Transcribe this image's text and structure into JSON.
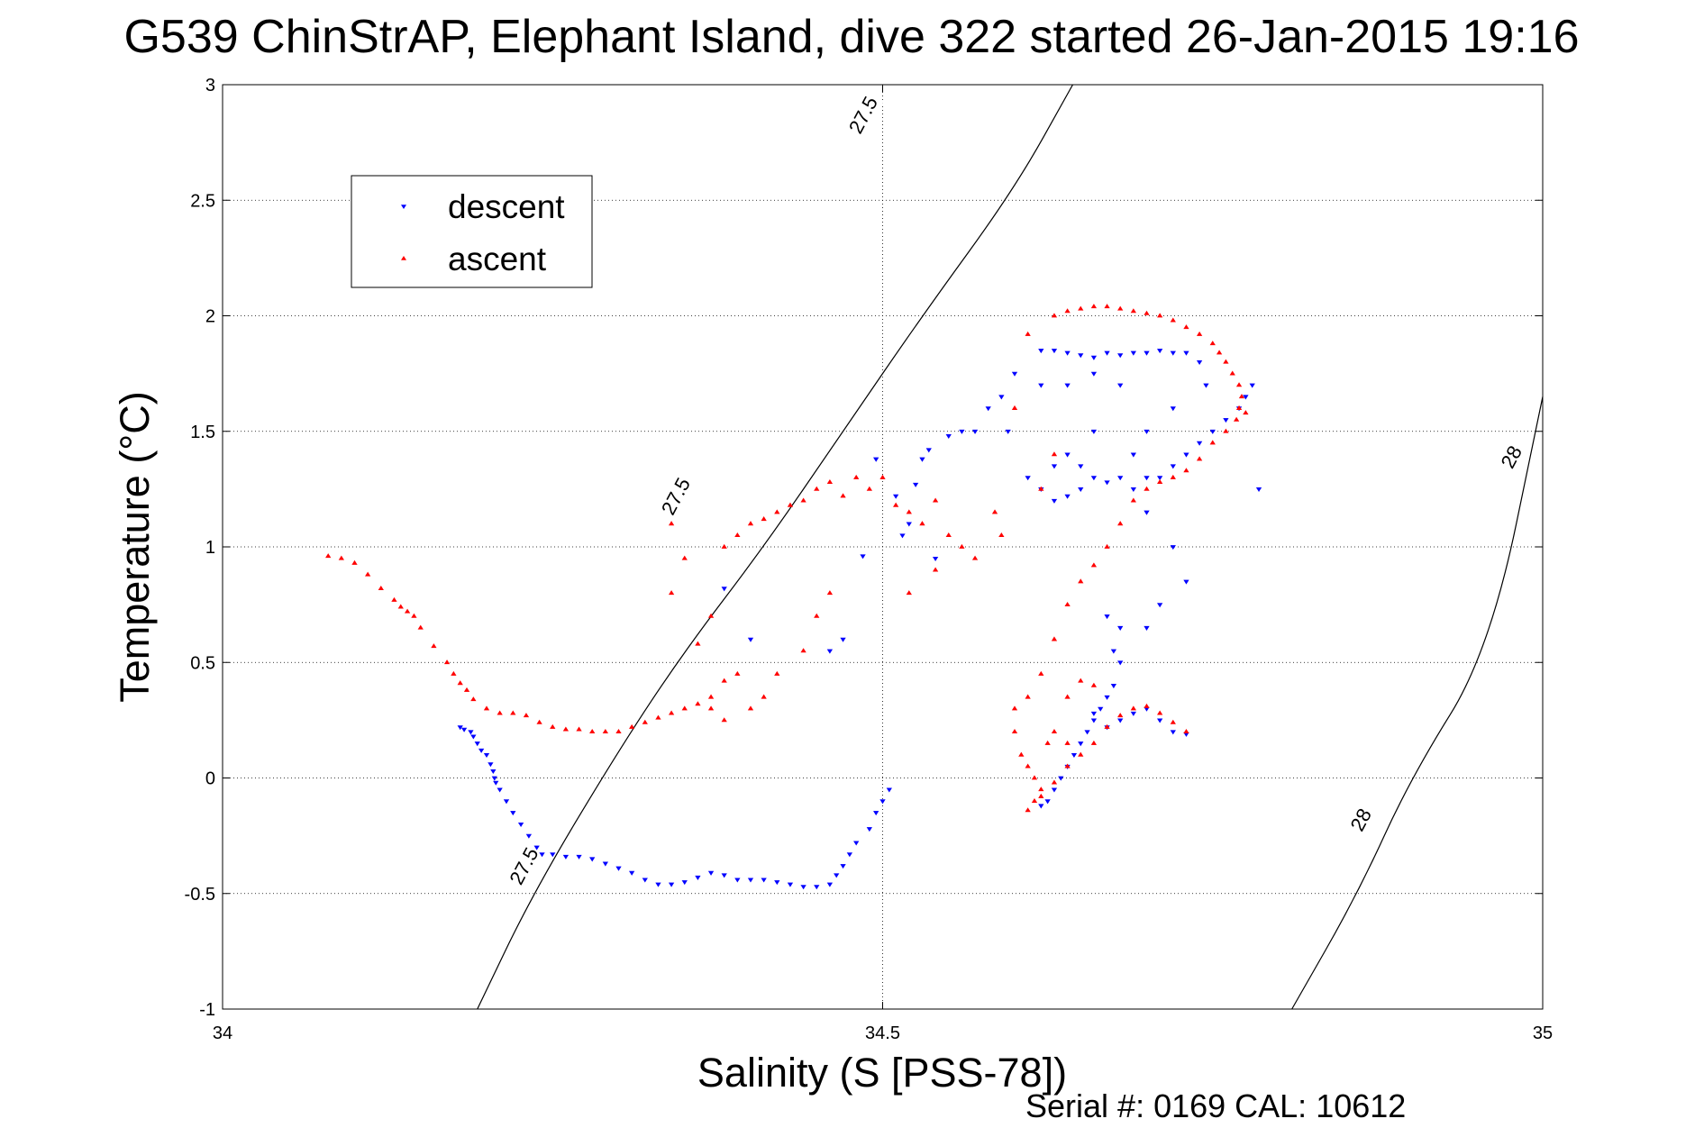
{
  "chart_data": {
    "type": "scatter",
    "title": "G539 ChinStrAP, Elephant Island, dive 322 started 26-Jan-2015 19:16",
    "xlabel": "Salinity (S [PSS-78])",
    "ylabel": "Temperature (°C)",
    "footer": "Serial #: 0169 CAL: 10612",
    "xlim": [
      34,
      35
    ],
    "ylim": [
      -1,
      3
    ],
    "xticks": [
      "34",
      "34.5",
      "35"
    ],
    "yticks": [
      "-1",
      "-0.5",
      "0",
      "0.5",
      "1",
      "1.5",
      "2",
      "2.5",
      "3"
    ],
    "grid": true,
    "legend": {
      "placement": "top-left",
      "entries": [
        "descent",
        "ascent"
      ]
    },
    "colors": {
      "descent": "#0000ff",
      "ascent": "#ff0000",
      "contour": "#000000"
    },
    "contours": [
      {
        "label": "27.5",
        "points": [
          [
            34.193,
            -1.0
          ],
          [
            34.235,
            -0.5
          ],
          [
            34.3,
            0.12
          ],
          [
            34.35,
            0.55
          ],
          [
            34.41,
            1.0
          ],
          [
            34.47,
            1.5
          ],
          [
            34.53,
            2.0
          ],
          [
            34.6,
            2.55
          ],
          [
            34.644,
            3.0
          ]
        ],
        "label_positions": [
          [
            34.228,
            -0.38
          ],
          [
            34.343,
            1.22
          ],
          [
            34.485,
            2.87
          ]
        ]
      },
      {
        "label": "28",
        "points": [
          [
            34.81,
            -1.0
          ],
          [
            34.86,
            -0.5
          ],
          [
            34.9,
            0.0
          ],
          [
            34.96,
            0.55
          ],
          [
            35.0,
            1.65
          ]
        ],
        "label_positions": [
          [
            34.862,
            -0.18
          ],
          [
            34.976,
            1.39
          ]
        ]
      }
    ],
    "series": [
      {
        "name": "descent",
        "marker": "triangle-down",
        "points": [
          [
            34.18,
            0.22
          ],
          [
            34.183,
            0.21
          ],
          [
            34.188,
            0.2
          ],
          [
            34.19,
            0.18
          ],
          [
            34.193,
            0.15
          ],
          [
            34.196,
            0.12
          ],
          [
            34.2,
            0.1
          ],
          [
            34.203,
            0.06
          ],
          [
            34.205,
            0.03
          ],
          [
            34.206,
            0.0
          ],
          [
            34.207,
            -0.02
          ],
          [
            34.21,
            -0.05
          ],
          [
            34.215,
            -0.1
          ],
          [
            34.22,
            -0.15
          ],
          [
            34.226,
            -0.2
          ],
          [
            34.232,
            -0.25
          ],
          [
            34.238,
            -0.3
          ],
          [
            34.242,
            -0.33
          ],
          [
            34.25,
            -0.33
          ],
          [
            34.26,
            -0.34
          ],
          [
            34.27,
            -0.34
          ],
          [
            34.28,
            -0.35
          ],
          [
            34.29,
            -0.37
          ],
          [
            34.3,
            -0.39
          ],
          [
            34.31,
            -0.41
          ],
          [
            34.32,
            -0.44
          ],
          [
            34.33,
            -0.46
          ],
          [
            34.34,
            -0.46
          ],
          [
            34.35,
            -0.45
          ],
          [
            34.36,
            -0.43
          ],
          [
            34.37,
            -0.41
          ],
          [
            34.38,
            -0.42
          ],
          [
            34.39,
            -0.44
          ],
          [
            34.4,
            -0.44
          ],
          [
            34.41,
            -0.44
          ],
          [
            34.42,
            -0.45
          ],
          [
            34.43,
            -0.46
          ],
          [
            34.44,
            -0.47
          ],
          [
            34.45,
            -0.47
          ],
          [
            34.46,
            -0.46
          ],
          [
            34.465,
            -0.42
          ],
          [
            34.47,
            -0.38
          ],
          [
            34.475,
            -0.33
          ],
          [
            34.48,
            -0.28
          ],
          [
            34.49,
            -0.22
          ],
          [
            34.495,
            -0.15
          ],
          [
            34.5,
            -0.1
          ],
          [
            34.505,
            -0.05
          ],
          [
            34.38,
            0.82
          ],
          [
            34.4,
            0.6
          ],
          [
            34.46,
            0.55
          ],
          [
            34.47,
            0.6
          ],
          [
            34.485,
            0.96
          ],
          [
            34.495,
            1.38
          ],
          [
            34.51,
            1.22
          ],
          [
            34.515,
            1.05
          ],
          [
            34.52,
            1.1
          ],
          [
            34.525,
            1.27
          ],
          [
            34.53,
            1.38
          ],
          [
            34.535,
            1.42
          ],
          [
            34.54,
            0.95
          ],
          [
            34.55,
            1.48
          ],
          [
            34.56,
            1.5
          ],
          [
            34.57,
            1.5
          ],
          [
            34.58,
            1.6
          ],
          [
            34.59,
            1.65
          ],
          [
            34.595,
            1.5
          ],
          [
            34.6,
            1.75
          ],
          [
            34.61,
            1.3
          ],
          [
            34.62,
            1.25
          ],
          [
            34.63,
            1.2
          ],
          [
            34.64,
            1.22
          ],
          [
            34.65,
            1.25
          ],
          [
            34.66,
            1.3
          ],
          [
            34.67,
            1.28
          ],
          [
            34.68,
            1.3
          ],
          [
            34.69,
            1.25
          ],
          [
            34.7,
            1.3
          ],
          [
            34.71,
            1.3
          ],
          [
            34.72,
            1.35
          ],
          [
            34.73,
            1.4
          ],
          [
            34.74,
            1.45
          ],
          [
            34.75,
            1.5
          ],
          [
            34.76,
            1.55
          ],
          [
            34.77,
            1.6
          ],
          [
            34.775,
            1.65
          ],
          [
            34.78,
            1.7
          ],
          [
            34.785,
            1.25
          ],
          [
            34.62,
            1.85
          ],
          [
            34.63,
            1.85
          ],
          [
            34.64,
            1.84
          ],
          [
            34.65,
            1.83
          ],
          [
            34.66,
            1.82
          ],
          [
            34.67,
            1.84
          ],
          [
            34.68,
            1.83
          ],
          [
            34.69,
            1.84
          ],
          [
            34.7,
            1.84
          ],
          [
            34.71,
            1.85
          ],
          [
            34.72,
            1.84
          ],
          [
            34.73,
            1.84
          ],
          [
            34.74,
            1.8
          ],
          [
            34.745,
            1.7
          ],
          [
            34.62,
            1.7
          ],
          [
            34.64,
            1.7
          ],
          [
            34.66,
            1.75
          ],
          [
            34.68,
            1.7
          ],
          [
            34.72,
            1.6
          ],
          [
            34.7,
            1.5
          ],
          [
            34.69,
            1.4
          ],
          [
            34.66,
            1.5
          ],
          [
            34.64,
            1.4
          ],
          [
            34.63,
            1.35
          ],
          [
            34.65,
            1.35
          ],
          [
            34.7,
            1.15
          ],
          [
            34.72,
            1.0
          ],
          [
            34.73,
            0.85
          ],
          [
            34.71,
            0.75
          ],
          [
            34.7,
            0.65
          ],
          [
            34.68,
            0.65
          ],
          [
            34.67,
            0.7
          ],
          [
            34.675,
            0.55
          ],
          [
            34.68,
            0.5
          ],
          [
            34.675,
            0.4
          ],
          [
            34.67,
            0.35
          ],
          [
            34.665,
            0.3
          ],
          [
            34.66,
            0.25
          ],
          [
            34.655,
            0.2
          ],
          [
            34.65,
            0.15
          ],
          [
            34.645,
            0.1
          ],
          [
            34.64,
            0.05
          ],
          [
            34.635,
            0.0
          ],
          [
            34.63,
            -0.05
          ],
          [
            34.625,
            -0.1
          ],
          [
            34.62,
            -0.12
          ],
          [
            34.66,
            0.28
          ],
          [
            34.67,
            0.22
          ],
          [
            34.68,
            0.25
          ],
          [
            34.69,
            0.28
          ],
          [
            34.7,
            0.3
          ],
          [
            34.71,
            0.25
          ],
          [
            34.72,
            0.2
          ],
          [
            34.73,
            0.19
          ]
        ]
      },
      {
        "name": "ascent",
        "marker": "triangle-up",
        "points": [
          [
            34.08,
            0.96
          ],
          [
            34.09,
            0.95
          ],
          [
            34.1,
            0.93
          ],
          [
            34.11,
            0.88
          ],
          [
            34.12,
            0.82
          ],
          [
            34.13,
            0.77
          ],
          [
            34.135,
            0.74
          ],
          [
            34.14,
            0.72
          ],
          [
            34.145,
            0.7
          ],
          [
            34.15,
            0.65
          ],
          [
            34.16,
            0.57
          ],
          [
            34.17,
            0.5
          ],
          [
            34.175,
            0.45
          ],
          [
            34.18,
            0.41
          ],
          [
            34.185,
            0.38
          ],
          [
            34.19,
            0.34
          ],
          [
            34.2,
            0.3
          ],
          [
            34.21,
            0.28
          ],
          [
            34.22,
            0.28
          ],
          [
            34.23,
            0.27
          ],
          [
            34.24,
            0.24
          ],
          [
            34.25,
            0.22
          ],
          [
            34.26,
            0.21
          ],
          [
            34.27,
            0.21
          ],
          [
            34.28,
            0.2
          ],
          [
            34.29,
            0.2
          ],
          [
            34.3,
            0.2
          ],
          [
            34.31,
            0.22
          ],
          [
            34.32,
            0.24
          ],
          [
            34.33,
            0.26
          ],
          [
            34.34,
            0.28
          ],
          [
            34.35,
            0.3
          ],
          [
            34.36,
            0.32
          ],
          [
            34.37,
            0.35
          ],
          [
            34.38,
            0.42
          ],
          [
            34.39,
            0.45
          ],
          [
            34.36,
            0.58
          ],
          [
            34.37,
            0.7
          ],
          [
            34.34,
            0.8
          ],
          [
            34.35,
            0.95
          ],
          [
            34.34,
            1.1
          ],
          [
            34.38,
            1.0
          ],
          [
            34.39,
            1.05
          ],
          [
            34.4,
            1.1
          ],
          [
            34.41,
            1.12
          ],
          [
            34.42,
            1.15
          ],
          [
            34.43,
            1.18
          ],
          [
            34.44,
            1.2
          ],
          [
            34.45,
            1.25
          ],
          [
            34.46,
            1.28
          ],
          [
            34.47,
            1.22
          ],
          [
            34.48,
            1.3
          ],
          [
            34.49,
            1.25
          ],
          [
            34.5,
            1.3
          ],
          [
            34.51,
            1.18
          ],
          [
            34.52,
            1.15
          ],
          [
            34.53,
            1.1
          ],
          [
            34.54,
            1.2
          ],
          [
            34.55,
            1.05
          ],
          [
            34.56,
            1.0
          ],
          [
            34.57,
            0.95
          ],
          [
            34.585,
            1.15
          ],
          [
            34.59,
            1.05
          ],
          [
            34.6,
            1.6
          ],
          [
            34.61,
            1.92
          ],
          [
            34.62,
            1.25
          ],
          [
            34.63,
            1.4
          ],
          [
            34.52,
            0.8
          ],
          [
            34.54,
            0.9
          ],
          [
            34.46,
            0.8
          ],
          [
            34.45,
            0.7
          ],
          [
            34.44,
            0.55
          ],
          [
            34.42,
            0.45
          ],
          [
            34.41,
            0.35
          ],
          [
            34.4,
            0.3
          ],
          [
            34.38,
            0.25
          ],
          [
            34.37,
            0.3
          ],
          [
            34.63,
            2.0
          ],
          [
            34.64,
            2.02
          ],
          [
            34.65,
            2.03
          ],
          [
            34.66,
            2.04
          ],
          [
            34.67,
            2.04
          ],
          [
            34.68,
            2.03
          ],
          [
            34.69,
            2.02
          ],
          [
            34.7,
            2.01
          ],
          [
            34.71,
            2.0
          ],
          [
            34.72,
            1.98
          ],
          [
            34.73,
            1.95
          ],
          [
            34.74,
            1.92
          ],
          [
            34.75,
            1.88
          ],
          [
            34.755,
            1.84
          ],
          [
            34.76,
            1.8
          ],
          [
            34.765,
            1.75
          ],
          [
            34.77,
            1.7
          ],
          [
            34.772,
            1.65
          ],
          [
            34.77,
            1.6
          ],
          [
            34.768,
            1.55
          ],
          [
            34.775,
            1.58
          ],
          [
            34.76,
            1.5
          ],
          [
            34.75,
            1.45
          ],
          [
            34.74,
            1.38
          ],
          [
            34.73,
            1.33
          ],
          [
            34.72,
            1.3
          ],
          [
            34.71,
            1.28
          ],
          [
            34.7,
            1.25
          ],
          [
            34.69,
            1.2
          ],
          [
            34.68,
            1.1
          ],
          [
            34.67,
            1.0
          ],
          [
            34.66,
            0.92
          ],
          [
            34.65,
            0.85
          ],
          [
            34.64,
            0.75
          ],
          [
            34.63,
            0.6
          ],
          [
            34.62,
            0.45
          ],
          [
            34.61,
            0.35
          ],
          [
            34.6,
            0.3
          ],
          [
            34.6,
            0.2
          ],
          [
            34.605,
            0.1
          ],
          [
            34.61,
            0.05
          ],
          [
            34.615,
            0.0
          ],
          [
            34.62,
            -0.05
          ],
          [
            34.615,
            -0.1
          ],
          [
            34.61,
            -0.14
          ],
          [
            34.62,
            -0.08
          ],
          [
            34.63,
            -0.02
          ],
          [
            34.64,
            0.05
          ],
          [
            34.65,
            0.1
          ],
          [
            34.66,
            0.15
          ],
          [
            34.67,
            0.22
          ],
          [
            34.68,
            0.27
          ],
          [
            34.69,
            0.3
          ],
          [
            34.7,
            0.31
          ],
          [
            34.71,
            0.28
          ],
          [
            34.72,
            0.24
          ],
          [
            34.73,
            0.2
          ],
          [
            34.64,
            0.35
          ],
          [
            34.65,
            0.42
          ],
          [
            34.66,
            0.4
          ],
          [
            34.63,
            0.2
          ],
          [
            34.625,
            0.15
          ],
          [
            34.64,
            0.15
          ]
        ]
      }
    ]
  }
}
